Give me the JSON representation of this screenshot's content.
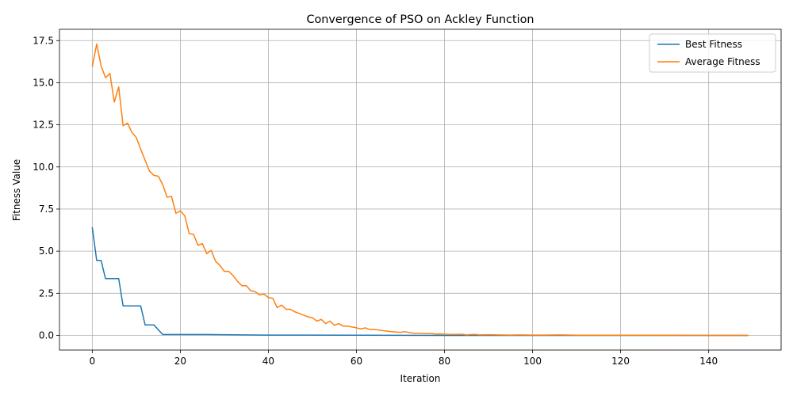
{
  "chart_data": {
    "type": "line",
    "title": "Convergence of PSO on Ackley Function",
    "xlabel": "Iteration",
    "ylabel": "Fitness Value",
    "xlim": [
      -7.45,
      156.45
    ],
    "ylim": [
      -0.87,
      18.17
    ],
    "xticks": [
      0,
      20,
      40,
      60,
      80,
      100,
      120,
      140
    ],
    "yticks": [
      0.0,
      2.5,
      5.0,
      7.5,
      10.0,
      12.5,
      15.0,
      17.5
    ],
    "xtick_labels": [
      "0",
      "20",
      "40",
      "60",
      "80",
      "100",
      "120",
      "140"
    ],
    "ytick_labels": [
      "0.0",
      "2.5",
      "5.0",
      "7.5",
      "10.0",
      "12.5",
      "15.0",
      "17.5"
    ],
    "grid": true,
    "legend_position": "top-right",
    "series": [
      {
        "name": "Best Fitness",
        "color": "#1f77b4",
        "points": [
          [
            0,
            6.42
          ],
          [
            1,
            4.45
          ],
          [
            2,
            4.45
          ],
          [
            3,
            3.37
          ],
          [
            4,
            3.37
          ],
          [
            5,
            3.37
          ],
          [
            6,
            3.37
          ],
          [
            7,
            1.75
          ],
          [
            8,
            1.75
          ],
          [
            9,
            1.75
          ],
          [
            10,
            1.75
          ],
          [
            11,
            1.75
          ],
          [
            12,
            0.62
          ],
          [
            13,
            0.62
          ],
          [
            14,
            0.62
          ],
          [
            16,
            0.05
          ],
          [
            20,
            0.05
          ],
          [
            26,
            0.05
          ],
          [
            30,
            0.04
          ],
          [
            40,
            0.02
          ],
          [
            60,
            0.01
          ],
          [
            80,
            0.0
          ],
          [
            100,
            0.0
          ],
          [
            120,
            0.0
          ],
          [
            149,
            0.0
          ]
        ]
      },
      {
        "name": "Average Fitness",
        "color": "#ff7f0e",
        "points": [
          [
            0,
            15.95
          ],
          [
            1,
            17.3
          ],
          [
            2,
            16.0
          ],
          [
            3,
            15.3
          ],
          [
            4,
            15.55
          ],
          [
            5,
            13.85
          ],
          [
            6,
            14.75
          ],
          [
            7,
            12.45
          ],
          [
            8,
            12.6
          ],
          [
            9,
            12.05
          ],
          [
            10,
            11.75
          ],
          [
            11,
            11.05
          ],
          [
            12,
            10.4
          ],
          [
            13,
            9.75
          ],
          [
            14,
            9.5
          ],
          [
            15,
            9.45
          ],
          [
            16,
            8.95
          ],
          [
            17,
            8.2
          ],
          [
            18,
            8.25
          ],
          [
            19,
            7.25
          ],
          [
            20,
            7.4
          ],
          [
            21,
            7.1
          ],
          [
            22,
            6.05
          ],
          [
            23,
            6.0
          ],
          [
            24,
            5.35
          ],
          [
            25,
            5.45
          ],
          [
            26,
            4.85
          ],
          [
            27,
            5.05
          ],
          [
            28,
            4.4
          ],
          [
            29,
            4.15
          ],
          [
            30,
            3.8
          ],
          [
            31,
            3.8
          ],
          [
            32,
            3.55
          ],
          [
            33,
            3.2
          ],
          [
            34,
            2.95
          ],
          [
            35,
            2.95
          ],
          [
            36,
            2.65
          ],
          [
            37,
            2.6
          ],
          [
            38,
            2.4
          ],
          [
            39,
            2.45
          ],
          [
            40,
            2.25
          ],
          [
            41,
            2.2
          ],
          [
            42,
            1.65
          ],
          [
            43,
            1.8
          ],
          [
            44,
            1.55
          ],
          [
            45,
            1.55
          ],
          [
            46,
            1.4
          ],
          [
            47,
            1.3
          ],
          [
            48,
            1.2
          ],
          [
            49,
            1.1
          ],
          [
            50,
            1.05
          ],
          [
            51,
            0.85
          ],
          [
            52,
            0.95
          ],
          [
            53,
            0.7
          ],
          [
            54,
            0.85
          ],
          [
            55,
            0.6
          ],
          [
            56,
            0.7
          ],
          [
            57,
            0.55
          ],
          [
            58,
            0.55
          ],
          [
            59,
            0.5
          ],
          [
            60,
            0.45
          ],
          [
            61,
            0.38
          ],
          [
            62,
            0.45
          ],
          [
            63,
            0.35
          ],
          [
            64,
            0.35
          ],
          [
            65,
            0.32
          ],
          [
            66,
            0.28
          ],
          [
            67,
            0.25
          ],
          [
            68,
            0.22
          ],
          [
            69,
            0.2
          ],
          [
            70,
            0.18
          ],
          [
            71,
            0.22
          ],
          [
            72,
            0.17
          ],
          [
            73,
            0.13
          ],
          [
            74,
            0.13
          ],
          [
            75,
            0.12
          ],
          [
            76,
            0.11
          ],
          [
            77,
            0.11
          ],
          [
            78,
            0.08
          ],
          [
            79,
            0.09
          ],
          [
            80,
            0.07
          ],
          [
            82,
            0.06
          ],
          [
            84,
            0.07
          ],
          [
            85,
            0.03
          ],
          [
            86,
            0.05
          ],
          [
            87,
            0.06
          ],
          [
            88,
            0.03
          ],
          [
            90,
            0.04
          ],
          [
            92,
            0.03
          ],
          [
            95,
            0.02
          ],
          [
            97,
            0.03
          ],
          [
            100,
            0.02
          ],
          [
            103,
            0.02
          ],
          [
            106,
            0.03
          ],
          [
            110,
            0.01
          ],
          [
            115,
            0.01
          ],
          [
            120,
            0.01
          ],
          [
            130,
            0.01
          ],
          [
            140,
            0.0
          ],
          [
            149,
            0.0
          ]
        ]
      }
    ]
  }
}
